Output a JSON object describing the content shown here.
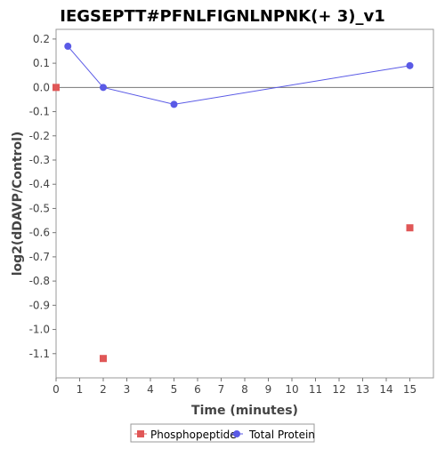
{
  "chart_data": {
    "type": "scatter",
    "title": "IEGSEPTT#PFNLFIGNLNPNK(+ 3)_v1",
    "xlabel": "Time (minutes)",
    "ylabel": "log2(dDAVP/Control)",
    "xlim": [
      0,
      16
    ],
    "ylim": [
      -1.2,
      0.24
    ],
    "x_ticks": [
      "0",
      "1",
      "2",
      "3",
      "4",
      "5",
      "6",
      "7",
      "8",
      "9",
      "10",
      "11",
      "12",
      "13",
      "14",
      "15"
    ],
    "y_ticks": [
      "0.2",
      "0.1",
      "0.0",
      "-0.1",
      "-0.2",
      "-0.3",
      "-0.4",
      "-0.5",
      "-0.6",
      "-0.7",
      "-0.8",
      "-0.9",
      "-1.0",
      "-1.1"
    ],
    "zero_line": true,
    "grid": false,
    "legend_position": "bottom-center",
    "series": [
      {
        "name": "Phosphopeptide",
        "color": "#e05757",
        "marker": "square",
        "line": false,
        "points": [
          [
            0,
            0.0
          ],
          [
            2,
            -1.12
          ],
          [
            15,
            -0.58
          ]
        ]
      },
      {
        "name": "Total Protein",
        "color": "#5a5ae6",
        "marker": "circle",
        "line": true,
        "points": [
          [
            0.5,
            0.17
          ],
          [
            2,
            0.0
          ],
          [
            5,
            -0.07
          ],
          [
            15,
            0.09
          ]
        ]
      }
    ]
  }
}
